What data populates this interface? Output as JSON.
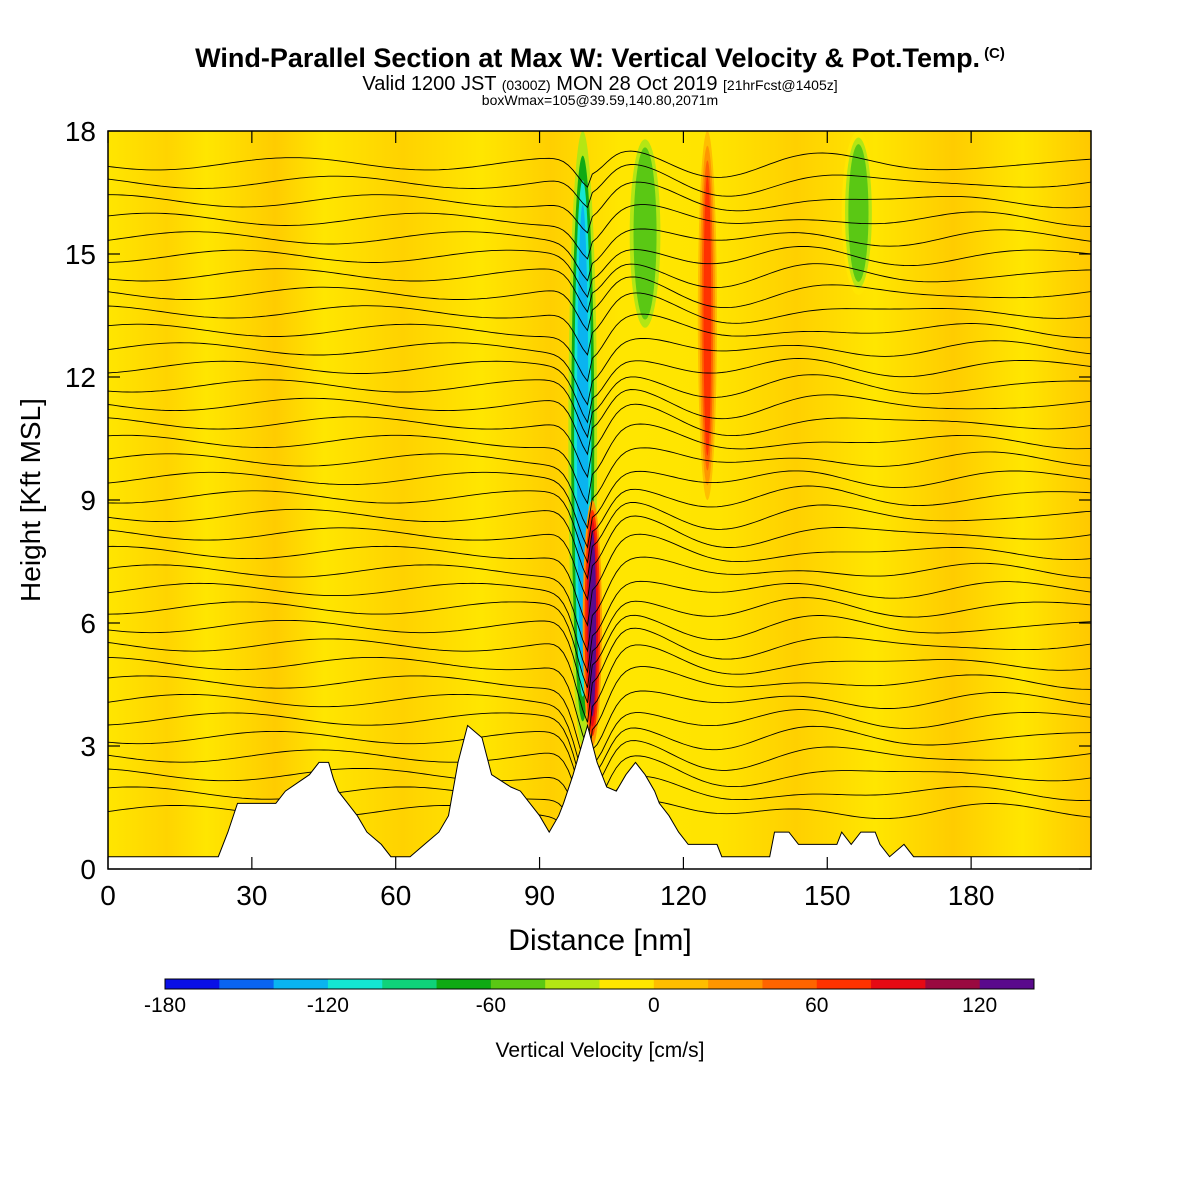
{
  "title": {
    "main": "Wind-Parallel Section at Max W: Vertical Velocity & Pot.Temp.",
    "copyright": "(C)",
    "valid_prefix": "Valid 1200 JST",
    "valid_utc": "(0300Z)",
    "valid_date": "MON 28 Oct 2019",
    "forecast": "[21hrFcst@1405z]",
    "box_info": "boxWmax=105@39.59,140.80,2071m"
  },
  "chart_data": {
    "type": "heatmap",
    "xlabel": "Distance [nm]",
    "ylabel": "Height [Kft MSL]",
    "xlim": [
      0,
      205
    ],
    "ylim": [
      0,
      18
    ],
    "x_ticks": [
      "0",
      "30",
      "60",
      "90",
      "120",
      "150",
      "180"
    ],
    "y_ticks": [
      "0",
      "3",
      "6",
      "9",
      "12",
      "15",
      "18"
    ],
    "colorbar": {
      "label": "Vertical Velocity [cm/s]",
      "tick_labels": [
        "-180",
        "-120",
        "-60",
        "0",
        "60",
        "120"
      ],
      "levels": [
        -180,
        -160,
        -140,
        -120,
        -100,
        -80,
        -60,
        -40,
        -20,
        0,
        20,
        40,
        60,
        80,
        100,
        120,
        140
      ],
      "colors": [
        "#0a10e6",
        "#0a64f0",
        "#0ab4f0",
        "#14e6d2",
        "#10d27a",
        "#10aa14",
        "#5ac814",
        "#b4e614",
        "#ffe600",
        "#ffbe00",
        "#ff9600",
        "#ff6400",
        "#ff3200",
        "#e60a14",
        "#9a0a40",
        "#5a0a8c"
      ]
    },
    "w_field": {
      "background_level": 0,
      "features": [
        {
          "type": "downdraft",
          "x_range": [
            96,
            102
          ],
          "height_range": [
            3,
            18
          ],
          "min_value": -140
        },
        {
          "type": "updraft",
          "x_range": [
            99,
            103
          ],
          "height_range": [
            3,
            9
          ],
          "max_value": 120
        },
        {
          "type": "updraft",
          "x_range": [
            123,
            127
          ],
          "height_range": [
            9,
            18
          ],
          "max_value": 60
        },
        {
          "type": "downdraft",
          "x_range": [
            108,
            116
          ],
          "height_range": [
            13,
            18
          ],
          "min_value": -60
        },
        {
          "type": "downdraft",
          "x_range": [
            153,
            160
          ],
          "height_range": [
            14,
            18
          ],
          "min_value": -60
        }
      ]
    },
    "theta_contours": {
      "count": 36,
      "wave_center_x": 101
    },
    "terrain_nm_kft": [
      [
        0,
        0.3
      ],
      [
        23,
        0.3
      ],
      [
        25,
        0.9
      ],
      [
        27,
        1.6
      ],
      [
        35,
        1.6
      ],
      [
        37,
        1.9
      ],
      [
        42,
        2.3
      ],
      [
        44,
        2.6
      ],
      [
        46,
        2.6
      ],
      [
        47,
        2.2
      ],
      [
        48,
        1.9
      ],
      [
        50,
        1.6
      ],
      [
        52,
        1.3
      ],
      [
        54,
        0.9
      ],
      [
        57,
        0.6
      ],
      [
        59,
        0.3
      ],
      [
        63,
        0.3
      ],
      [
        66,
        0.6
      ],
      [
        69,
        0.9
      ],
      [
        71,
        1.3
      ],
      [
        73,
        2.6
      ],
      [
        75,
        3.5
      ],
      [
        78,
        3.2
      ],
      [
        80,
        2.3
      ],
      [
        84,
        2.0
      ],
      [
        86,
        1.9
      ],
      [
        88,
        1.6
      ],
      [
        90,
        1.3
      ],
      [
        92,
        0.9
      ],
      [
        94,
        1.3
      ],
      [
        95,
        1.6
      ],
      [
        97,
        2.3
      ],
      [
        100,
        3.5
      ],
      [
        102,
        2.6
      ],
      [
        104,
        2.0
      ],
      [
        106,
        1.9
      ],
      [
        108,
        2.3
      ],
      [
        110,
        2.6
      ],
      [
        112,
        2.3
      ],
      [
        114,
        1.9
      ],
      [
        115,
        1.6
      ],
      [
        117,
        1.3
      ],
      [
        119,
        0.9
      ],
      [
        121,
        0.6
      ],
      [
        127,
        0.6
      ],
      [
        128,
        0.3
      ],
      [
        138,
        0.3
      ],
      [
        139,
        0.9
      ],
      [
        142,
        0.9
      ],
      [
        144,
        0.6
      ],
      [
        152,
        0.6
      ],
      [
        153,
        0.9
      ],
      [
        155,
        0.6
      ],
      [
        157,
        0.9
      ],
      [
        160,
        0.9
      ],
      [
        161,
        0.6
      ],
      [
        163,
        0.3
      ],
      [
        166,
        0.6
      ],
      [
        168,
        0.3
      ],
      [
        205,
        0.3
      ]
    ]
  }
}
